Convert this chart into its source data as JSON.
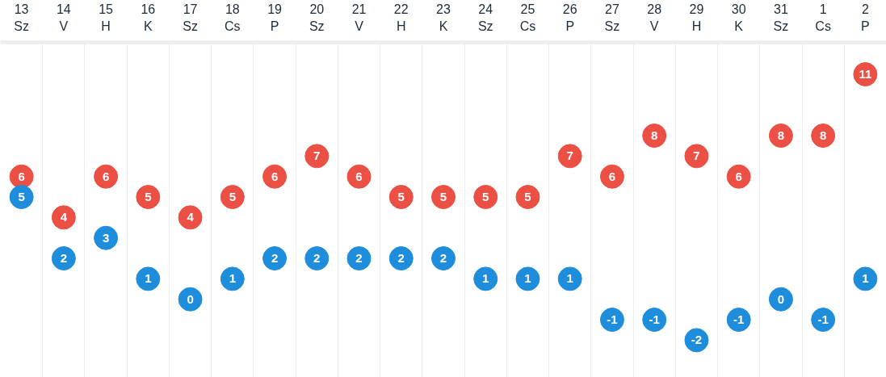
{
  "chart_data": {
    "type": "scatter",
    "categories": [
      "13\nSz",
      "14\nV",
      "15\nH",
      "16\nK",
      "17\nSz",
      "18\nCs",
      "19\nP",
      "20\nSz",
      "21\nV",
      "22\nH",
      "23\nK",
      "24\nSz",
      "25\nCs",
      "26\nP",
      "27\nSz",
      "28\nV",
      "29\nH",
      "30\nK",
      "31\nSz",
      "1\nCs",
      "2\nP"
    ],
    "series": [
      {
        "color": "#ec4f43",
        "values": [
          6,
          4,
          6,
          5,
          4,
          5,
          6,
          7,
          6,
          5,
          5,
          5,
          5,
          7,
          6,
          8,
          7,
          6,
          8,
          8,
          11
        ]
      },
      {
        "color": "#1e8ddb",
        "values": [
          5,
          2,
          3,
          1,
          0,
          1,
          2,
          2,
          2,
          2,
          2,
          1,
          1,
          1,
          -1,
          -1,
          -2,
          -1,
          0,
          -1,
          1
        ]
      }
    ],
    "marker": "circle",
    "data_labels": true,
    "grid": "x",
    "tick_labels": "x"
  }
}
